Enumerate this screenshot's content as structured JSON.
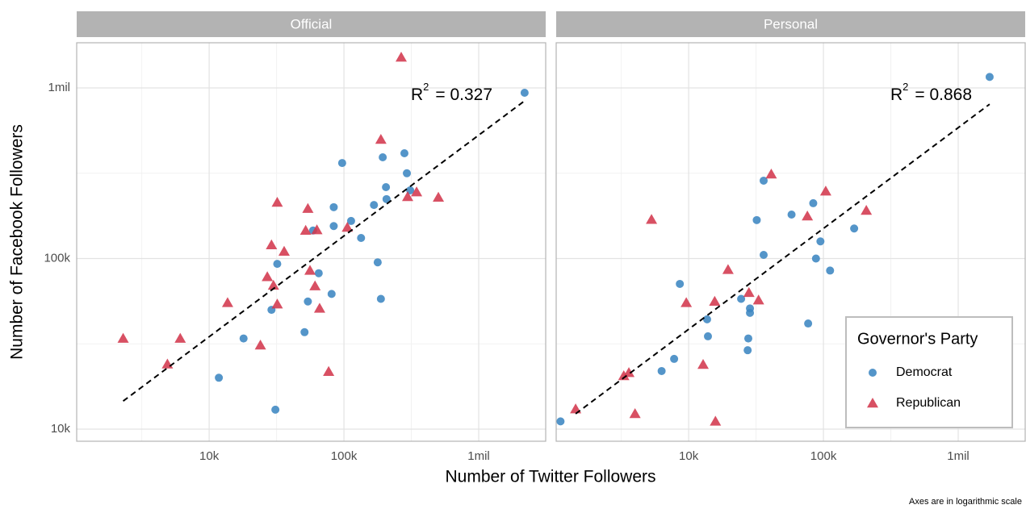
{
  "chart_data": {
    "type": "scatter",
    "x_label": "Number of Twitter Followers",
    "y_label": "Number of Facebook Followers",
    "caption": "Axes are in logarithmic scale",
    "log_x": true,
    "log_y": true,
    "grid": true,
    "xlim": [
      1040,
      3140000
    ],
    "ylim": [
      8490,
      1840000
    ],
    "xticks": [
      {
        "value": 10000,
        "label": "10k"
      },
      {
        "value": 100000,
        "label": "100k"
      },
      {
        "value": 1000000,
        "label": "1mil"
      }
    ],
    "yticks": [
      {
        "value": 10000,
        "label": "10k"
      },
      {
        "value": 100000,
        "label": "100k"
      },
      {
        "value": 1000000,
        "label": "1mil"
      }
    ],
    "legend": {
      "title": "Governor's Party",
      "position": "bottom-right"
    },
    "series": [
      {
        "name": "Democrat",
        "color": "#3c86c2",
        "marker": "circle"
      },
      {
        "name": "Republican",
        "color": "#d3384d",
        "marker": "triangle"
      }
    ],
    "facets": [
      {
        "title": "Official",
        "annotation": {
          "text": "R",
          "superscript": "2",
          "value_text": "= 0.327"
        },
        "trend": {
          "x": [
            2300,
            2190000
          ],
          "y": [
            14600,
            840000
          ]
        },
        "series": [
          {
            "x": [
              2190000,
              281000,
              194000,
              293000,
              97000,
              310000,
              205000,
              207000,
              167000,
              84000,
              113000,
              84000,
              134000,
              59000,
              32000,
              65000,
              178000,
              81000,
              54000,
              188000,
              29000,
              51000,
              18000,
              11800,
              31000
            ],
            "y": [
              937000,
              414000,
              392000,
              316000,
              363000,
              251000,
              262000,
              223000,
              206000,
              200000,
              166000,
              155000,
              132000,
              146000,
              93000,
              82000,
              95000,
              62000,
              56000,
              58000,
              50000,
              37000,
              34000,
              20000,
              13000
            ]
          },
          {
            "x": [
              266000,
              188000,
              502000,
              346000,
              297000,
              32000,
              54000,
              106000,
              63000,
              52000,
              29000,
              36000,
              56000,
              27000,
              30000,
              61000,
              13700,
              32000,
              66000,
              6100,
              2300,
              24000,
              4900,
              77000
            ],
            "y": [
              1510000,
              498000,
              228000,
              245000,
              230000,
              213000,
              196000,
              152000,
              147000,
              146000,
              120000,
              110000,
              85000,
              78000,
              69500,
              69000,
              55000,
              54000,
              51000,
              34000,
              34000,
              31000,
              24000,
              21700
            ]
          }
        ]
      },
      {
        "title": "Personal",
        "annotation": {
          "text": "R",
          "superscript": "2",
          "value_text": "= 0.868"
        },
        "trend": {
          "x": [
            1450,
            1710000
          ],
          "y": [
            12300,
            803000
          ]
        },
        "series": [
          {
            "x": [
              1710000,
              36000,
              84000,
              58000,
              32000,
              169000,
              95000,
              36000,
              88000,
              112000,
              8600,
              24500,
              28500,
              28500,
              13700,
              77000,
              13900,
              27700,
              27400,
              7800,
              6300,
              1120
            ],
            "y": [
              1160000,
              286000,
              211000,
              181000,
              168000,
              150000,
              126000,
              105000,
              100000,
              85000,
              71000,
              58000,
              51000,
              48000,
              44000,
              41600,
              35000,
              34000,
              29000,
              25800,
              21900,
              11100
            ]
          },
          {
            "x": [
              41000,
              104000,
              208000,
              76000,
              5300,
              19600,
              28000,
              9600,
              15600,
              33000,
              12800,
              3600,
              3300,
              1450,
              4000,
              15800
            ],
            "y": [
              312000,
              248000,
              191000,
              177000,
              169000,
              86000,
              63000,
              55000,
              56000,
              57000,
              23900,
              21400,
              20500,
              13100,
              12300,
              11100
            ]
          }
        ]
      }
    ]
  }
}
